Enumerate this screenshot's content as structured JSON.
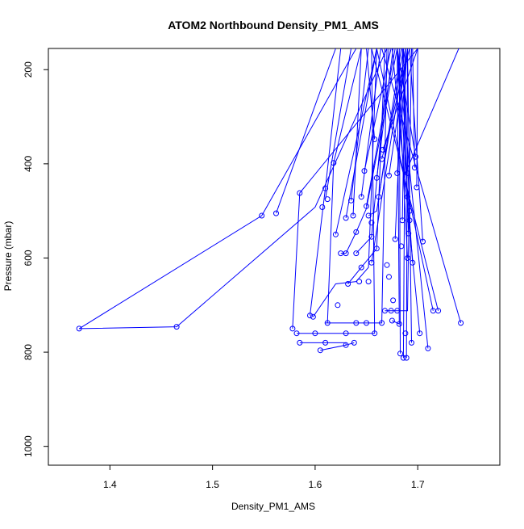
{
  "chart_data": {
    "type": "scatter",
    "title": "ATOM2 Northbound Density_PM1_AMS",
    "xlabel": "Density_PM1_AMS",
    "ylabel": "Pressure (mbar)",
    "xlim": [
      1.34,
      1.78
    ],
    "ylim": [
      1040,
      155
    ],
    "y_axis_inverted": true,
    "grid": false,
    "series_color": "#0000ff",
    "marker": "open-circle",
    "x_ticks": [
      1.4,
      1.5,
      1.6,
      1.7
    ],
    "x_tick_labels": [
      "1.4",
      "1.5",
      "1.6",
      "1.7"
    ],
    "y_ticks": [
      200,
      400,
      600,
      800,
      1000
    ],
    "y_tick_labels": [
      "200",
      "400",
      "600",
      "800",
      "1000"
    ],
    "segments": [
      [
        [
          1.37,
          750
        ],
        [
          1.465,
          746
        ],
        [
          1.6,
          492
        ],
        [
          1.67,
          155
        ]
      ],
      [
        [
          1.37,
          750
        ],
        [
          1.548,
          510
        ],
        [
          1.64,
          155
        ]
      ],
      [
        [
          1.562,
          505
        ],
        [
          1.62,
          155
        ]
      ],
      [
        [
          1.578,
          750
        ],
        [
          1.585,
          462
        ],
        [
          1.7,
          155
        ]
      ],
      [
        [
          1.585,
          780
        ],
        [
          1.61,
          780
        ],
        [
          1.63,
          780
        ],
        [
          1.63,
          785
        ],
        [
          1.605,
          796
        ],
        [
          1.63,
          785
        ],
        [
          1.638,
          780
        ]
      ],
      [
        [
          1.582,
          760
        ],
        [
          1.6,
          760
        ],
        [
          1.615,
          760
        ],
        [
          1.63,
          760
        ],
        [
          1.658,
          760
        ],
        [
          1.655,
          155
        ]
      ],
      [
        [
          1.595,
          722
        ],
        [
          1.61,
          452
        ],
        [
          1.625,
          155
        ]
      ],
      [
        [
          1.598,
          725
        ],
        [
          1.62,
          655
        ],
        [
          1.64,
          650
        ],
        [
          1.652,
          620
        ],
        [
          1.66,
          155
        ]
      ],
      [
        [
          1.61,
          738
        ],
        [
          1.63,
          738
        ],
        [
          1.64,
          738
        ],
        [
          1.65,
          738
        ],
        [
          1.665,
          738
        ],
        [
          1.67,
          155
        ]
      ],
      [
        [
          1.612,
          738
        ],
        [
          1.618,
          398
        ],
        [
          1.645,
          155
        ]
      ],
      [
        [
          1.61,
          475
        ],
        [
          1.635,
          155
        ]
      ],
      [
        [
          1.62,
          550
        ],
        [
          1.66,
          155
        ]
      ],
      [
        [
          1.625,
          590
        ],
        [
          1.63,
          590
        ],
        [
          1.64,
          545
        ],
        [
          1.65,
          495
        ],
        [
          1.68,
          155
        ]
      ],
      [
        [
          1.63,
          515
        ],
        [
          1.66,
          155
        ]
      ],
      [
        [
          1.632,
          655
        ],
        [
          1.645,
          620
        ],
        [
          1.66,
          580
        ],
        [
          1.668,
          155
        ]
      ],
      [
        [
          1.635,
          478
        ],
        [
          1.652,
          155
        ]
      ],
      [
        [
          1.637,
          510
        ],
        [
          1.645,
          155
        ]
      ],
      [
        [
          1.64,
          590
        ],
        [
          1.655,
          555
        ],
        [
          1.672,
          155
        ]
      ],
      [
        [
          1.645,
          470
        ],
        [
          1.664,
          155
        ]
      ],
      [
        [
          1.648,
          415
        ],
        [
          1.674,
          155
        ]
      ],
      [
        [
          1.65,
          490
        ],
        [
          1.678,
          155
        ]
      ],
      [
        [
          1.652,
          510
        ],
        [
          1.66,
          500
        ],
        [
          1.684,
          155
        ]
      ],
      [
        [
          1.655,
          610
        ],
        [
          1.688,
          155
        ]
      ],
      [
        [
          1.658,
          348
        ],
        [
          1.65,
          155
        ]
      ],
      [
        [
          1.66,
          430
        ],
        [
          1.676,
          155
        ]
      ],
      [
        [
          1.662,
          470
        ],
        [
          1.686,
          155
        ]
      ],
      [
        [
          1.665,
          390
        ],
        [
          1.692,
          155
        ]
      ],
      [
        [
          1.668,
          712
        ],
        [
          1.674,
          712
        ],
        [
          1.68,
          712
        ],
        [
          1.69,
          712
        ],
        [
          1.694,
          155
        ]
      ],
      [
        [
          1.672,
          425
        ],
        [
          1.69,
          155
        ]
      ],
      [
        [
          1.675,
          733
        ],
        [
          1.682,
          740
        ],
        [
          1.68,
          155
        ]
      ],
      [
        [
          1.678,
          560
        ],
        [
          1.686,
          155
        ]
      ],
      [
        [
          1.68,
          420
        ],
        [
          1.69,
          155
        ]
      ],
      [
        [
          1.683,
          803
        ],
        [
          1.682,
          155
        ]
      ],
      [
        [
          1.685,
          520
        ],
        [
          1.688,
          155
        ]
      ],
      [
        [
          1.686,
          812
        ],
        [
          1.688,
          155
        ]
      ],
      [
        [
          1.689,
          812
        ],
        [
          1.69,
          155
        ]
      ],
      [
        [
          1.69,
          600
        ],
        [
          1.68,
          155
        ]
      ],
      [
        [
          1.692,
          500
        ],
        [
          1.686,
          155
        ]
      ],
      [
        [
          1.694,
          780
        ],
        [
          1.69,
          155
        ]
      ],
      [
        [
          1.695,
          610
        ],
        [
          1.68,
          155
        ]
      ],
      [
        [
          1.697,
          408
        ],
        [
          1.695,
          155
        ]
      ],
      [
        [
          1.699,
          450
        ],
        [
          1.7,
          155
        ]
      ],
      [
        [
          1.702,
          760
        ],
        [
          1.675,
          155
        ]
      ],
      [
        [
          1.705,
          565
        ],
        [
          1.692,
          155
        ]
      ],
      [
        [
          1.71,
          792
        ],
        [
          1.68,
          155
        ]
      ],
      [
        [
          1.715,
          712
        ],
        [
          1.66,
          155
        ]
      ],
      [
        [
          1.72,
          712
        ],
        [
          1.655,
          155
        ]
      ],
      [
        [
          1.742,
          738
        ],
        [
          1.665,
          155
        ]
      ],
      [
        [
          1.698,
          385
        ],
        [
          1.68,
          155
        ]
      ],
      [
        [
          1.688,
          420
        ],
        [
          1.74,
          155
        ]
      ],
      [
        [
          1.691,
          548
        ],
        [
          1.685,
          155
        ]
      ],
      [
        [
          1.666,
          370
        ],
        [
          1.7,
          155
        ]
      ]
    ],
    "points": [
      [
        1.37,
        750
      ],
      [
        1.465,
        746
      ],
      [
        1.548,
        510
      ],
      [
        1.562,
        505
      ],
      [
        1.585,
        462
      ],
      [
        1.578,
        750
      ],
      [
        1.582,
        760
      ],
      [
        1.585,
        780
      ],
      [
        1.595,
        722
      ],
      [
        1.598,
        725
      ],
      [
        1.6,
        760
      ],
      [
        1.605,
        796
      ],
      [
        1.607,
        492
      ],
      [
        1.61,
        780
      ],
      [
        1.61,
        452
      ],
      [
        1.612,
        738
      ],
      [
        1.612,
        475
      ],
      [
        1.618,
        398
      ],
      [
        1.62,
        550
      ],
      [
        1.625,
        590
      ],
      [
        1.63,
        590
      ],
      [
        1.63,
        515
      ],
      [
        1.63,
        760
      ],
      [
        1.63,
        785
      ],
      [
        1.632,
        655
      ],
      [
        1.635,
        478
      ],
      [
        1.637,
        510
      ],
      [
        1.638,
        780
      ],
      [
        1.64,
        545
      ],
      [
        1.64,
        738
      ],
      [
        1.64,
        590
      ],
      [
        1.643,
        650
      ],
      [
        1.645,
        470
      ],
      [
        1.645,
        620
      ],
      [
        1.648,
        415
      ],
      [
        1.65,
        490
      ],
      [
        1.65,
        738
      ],
      [
        1.652,
        510
      ],
      [
        1.655,
        555
      ],
      [
        1.655,
        610
      ],
      [
        1.658,
        348
      ],
      [
        1.658,
        760
      ],
      [
        1.66,
        430
      ],
      [
        1.66,
        580
      ],
      [
        1.662,
        470
      ],
      [
        1.665,
        390
      ],
      [
        1.665,
        738
      ],
      [
        1.668,
        712
      ],
      [
        1.672,
        425
      ],
      [
        1.674,
        712
      ],
      [
        1.675,
        733
      ],
      [
        1.678,
        560
      ],
      [
        1.68,
        420
      ],
      [
        1.68,
        712
      ],
      [
        1.682,
        740
      ],
      [
        1.683,
        803
      ],
      [
        1.685,
        520
      ],
      [
        1.686,
        812
      ],
      [
        1.689,
        812
      ],
      [
        1.69,
        600
      ],
      [
        1.69,
        420
      ],
      [
        1.691,
        548
      ],
      [
        1.692,
        500
      ],
      [
        1.694,
        780
      ],
      [
        1.695,
        610
      ],
      [
        1.697,
        408
      ],
      [
        1.698,
        385
      ],
      [
        1.699,
        450
      ],
      [
        1.702,
        760
      ],
      [
        1.705,
        565
      ],
      [
        1.71,
        792
      ],
      [
        1.715,
        712
      ],
      [
        1.72,
        712
      ],
      [
        1.742,
        738
      ],
      [
        1.688,
        760
      ],
      [
        1.666,
        370
      ],
      [
        1.672,
        640
      ],
      [
        1.692,
        520
      ],
      [
        1.684,
        575
      ],
      [
        1.652,
        650
      ],
      [
        1.622,
        700
      ],
      [
        1.676,
        690
      ],
      [
        1.69,
        470
      ],
      [
        1.67,
        615
      ],
      [
        1.655,
        525
      ]
    ]
  }
}
